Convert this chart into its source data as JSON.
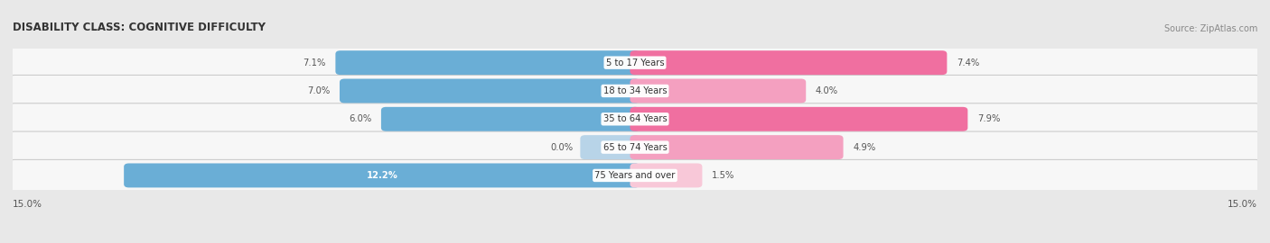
{
  "title": "DISABILITY CLASS: COGNITIVE DIFFICULTY",
  "source": "Source: ZipAtlas.com",
  "categories": [
    "5 to 17 Years",
    "18 to 34 Years",
    "35 to 64 Years",
    "65 to 74 Years",
    "75 Years and over"
  ],
  "male_values": [
    7.1,
    7.0,
    6.0,
    0.0,
    12.2
  ],
  "female_values": [
    7.4,
    4.0,
    7.9,
    4.9,
    1.5
  ],
  "max_val": 15.0,
  "male_color_strong": "#6aaed6",
  "male_color_weak": "#b8d4e8",
  "female_color_strong": "#f06fa0",
  "female_color_medium": "#f4a0c0",
  "female_color_weak": "#f8c8d8",
  "row_border_color": "#cccccc",
  "row_fill_color": "#f7f7f7",
  "bg_color": "#e8e8e8",
  "label_color": "#555555",
  "title_color": "#333333",
  "source_color": "#888888"
}
